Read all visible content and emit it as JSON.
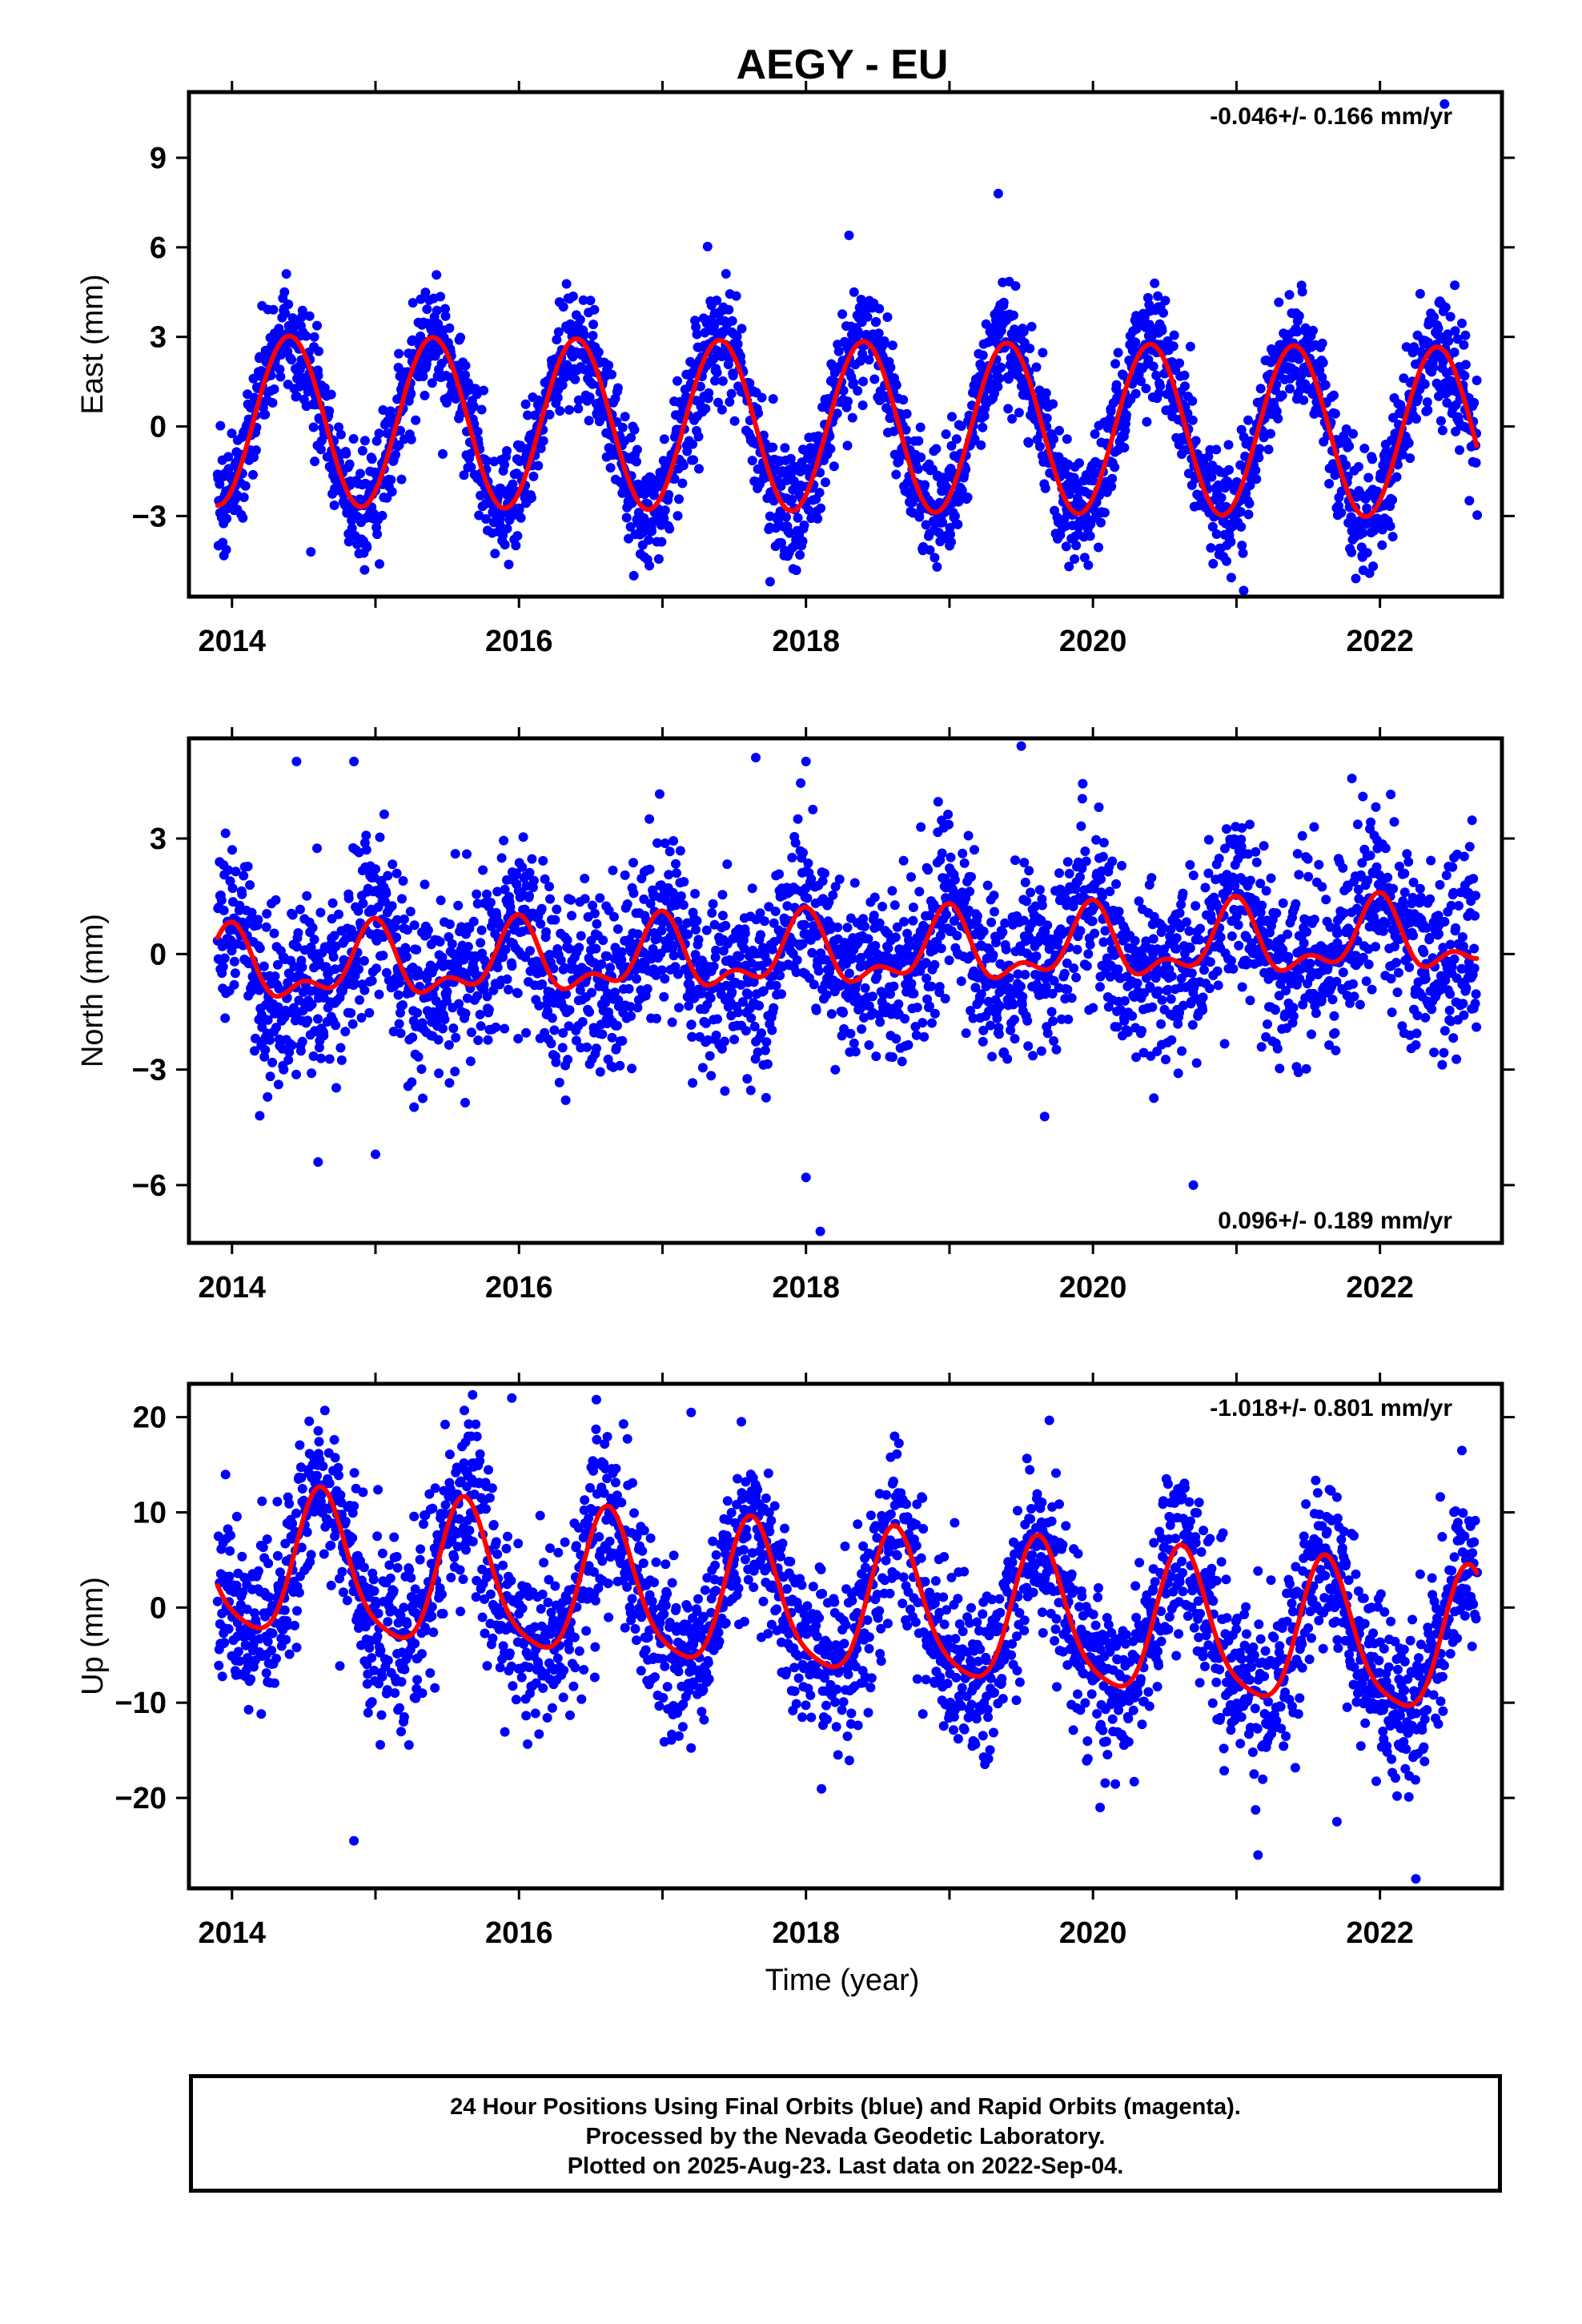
{
  "title": "AEGY - EU",
  "xlabel": "Time (year)",
  "footer": {
    "line1": "24 Hour Positions Using Final Orbits (blue) and Rapid Orbits (magenta).",
    "line2": "Processed by the Nevada Geodetic Laboratory.",
    "line3": "Plotted on 2025-Aug-23. Last data on 2022-Sep-04."
  },
  "colors": {
    "points": "#0000ff",
    "fit": "#ff0000",
    "axes": "#000000"
  },
  "chart_data": [
    {
      "type": "scatter",
      "component": "east",
      "ylabel": "East (mm)",
      "rate_label": "-0.046+/- 0.166 mm/yr",
      "rate_position": "top-right",
      "xlim": [
        2013.7,
        2022.85
      ],
      "ylim": [
        -5.7,
        11.2
      ],
      "xticks": [
        2014,
        2016,
        2018,
        2020,
        2022
      ],
      "xtick_labels": [
        "2014",
        "2016",
        "2018",
        "2020",
        "2022"
      ],
      "yticks": [
        -3,
        0,
        3,
        6,
        9
      ],
      "ytick_labels": [
        "−3",
        "0",
        "3",
        "6",
        "9"
      ],
      "grid": false,
      "fit_model": {
        "offset": 0.0,
        "trend": -0.046,
        "t0": 2018.3,
        "annual_amp": 2.85,
        "annual_peak": 0.4,
        "semiannual_amp": 0.0,
        "semiannual_peak": 0.0
      },
      "series_stats": {
        "start": 2013.9,
        "end": 2022.68,
        "noise_sd": 0.95
      },
      "outliers": [
        [
          2022.45,
          10.8
        ],
        [
          2019.34,
          7.8
        ],
        [
          2018.3,
          6.4
        ],
        [
          2017.75,
          -5.2
        ],
        [
          2021.05,
          -5.5
        ],
        [
          2016.8,
          -5.0
        ],
        [
          2014.55,
          -4.2
        ]
      ]
    },
    {
      "type": "scatter",
      "component": "north",
      "ylabel": "North (mm)",
      "rate_label": "0.096+/- 0.189 mm/yr",
      "rate_position": "bottom-right",
      "xlim": [
        2013.7,
        2022.85
      ],
      "ylim": [
        -7.5,
        5.6
      ],
      "xticks": [
        2014,
        2016,
        2018,
        2020,
        2022
      ],
      "xtick_labels": [
        "2014",
        "2016",
        "2018",
        "2020",
        "2022"
      ],
      "yticks": [
        -6,
        -3,
        0,
        3
      ],
      "ytick_labels": [
        "−6",
        "−3",
        "0",
        "3"
      ],
      "grid": false,
      "fit_model": {
        "offset": 0.0,
        "trend": 0.096,
        "t0": 2018.3,
        "annual_amp": 0.8,
        "annual_peak": 0.98,
        "semiannual_amp": 0.45,
        "semiannual_peak": 0.0
      },
      "series_stats": {
        "start": 2013.9,
        "end": 2022.68,
        "noise_sd": 1.15
      },
      "outliers": [
        [
          2014.45,
          5.0
        ],
        [
          2014.85,
          5.0
        ],
        [
          2017.65,
          5.1
        ],
        [
          2018.0,
          5.0
        ],
        [
          2019.5,
          5.4
        ],
        [
          2018.0,
          -5.8
        ],
        [
          2018.1,
          -7.2
        ],
        [
          2014.6,
          -5.4
        ],
        [
          2020.7,
          -6.0
        ],
        [
          2015.0,
          -5.2
        ]
      ]
    },
    {
      "type": "scatter",
      "component": "up",
      "ylabel": "Up (mm)",
      "rate_label": "-1.018+/- 0.801 mm/yr",
      "rate_position": "top-right",
      "xlim": [
        2013.7,
        2022.85
      ],
      "ylim": [
        -29.5,
        23.5
      ],
      "xticks": [
        2014,
        2016,
        2018,
        2020,
        2022
      ],
      "xtick_labels": [
        "2014",
        "2016",
        "2018",
        "2020",
        "2022"
      ],
      "yticks": [
        -20,
        -10,
        0,
        10,
        20
      ],
      "ytick_labels": [
        "−20",
        "−10",
        "0",
        "10",
        "20"
      ],
      "grid": false,
      "fit_model": {
        "offset": 0.0,
        "trend": -1.018,
        "t0": 2018.3,
        "annual_amp": 7.5,
        "annual_peak": 0.63,
        "semiannual_amp": 1.5,
        "semiannual_peak": 0.1
      },
      "series_stats": {
        "start": 2013.9,
        "end": 2022.68,
        "noise_sd": 4.6
      },
      "outliers": [
        [
          2015.95,
          22.0
        ],
        [
          2017.2,
          20.5
        ],
        [
          2014.85,
          -24.5
        ],
        [
          2021.15,
          -26.0
        ],
        [
          2022.25,
          -28.5
        ],
        [
          2021.7,
          -22.5
        ],
        [
          2020.05,
          -21.0
        ]
      ]
    }
  ]
}
